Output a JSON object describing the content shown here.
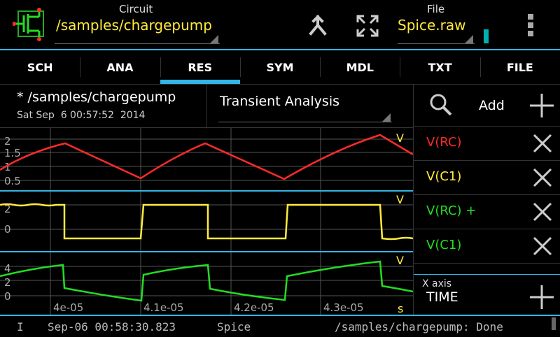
{
  "topbar": {
    "circuit_label": "Circuit",
    "circuit_value": "/samples/chargepump",
    "file_label": "File",
    "file_value": "Spice.raw",
    "logo_icon": "circuit-logo-icon",
    "merge_icon": "merge-icon",
    "fullscreen_icon": "fullscreen-icon",
    "menu_icon": "overflow-menu-icon"
  },
  "tabs": [
    {
      "label": "SCH",
      "active": false
    },
    {
      "label": "ANA",
      "active": false
    },
    {
      "label": "RES",
      "active": true
    },
    {
      "label": "SYM",
      "active": false
    },
    {
      "label": "MDL",
      "active": false
    },
    {
      "label": "TXT",
      "active": false
    },
    {
      "label": "FILE",
      "active": false
    }
  ],
  "info": {
    "title": "* /samples/chargepump",
    "date": "Sat Sep  6 00:57:52  2014",
    "analysis": "Transient Analysis"
  },
  "signals_panel": {
    "add_label": "Add",
    "signals": [
      {
        "label": "V(RC)",
        "color": "#ff2a2a"
      },
      {
        "label": "V(C1)",
        "color": "#ffeb3b"
      },
      {
        "label": "V(RC) +",
        "color": "#22dd22"
      },
      {
        "label": "V(C1)",
        "color": "#22dd22"
      }
    ],
    "xaxis_label": "X axis",
    "xaxis_value": "TIME"
  },
  "plots": {
    "x_ticks": [
      "4e-05",
      "4.1e-05",
      "4.2e-05",
      "4.3e-05"
    ],
    "x_unit": "s",
    "plot1": {
      "unit": "V",
      "ticks": [
        "2",
        "1.5",
        "1",
        "0.5"
      ]
    },
    "plot2": {
      "unit": "V",
      "ticks": [
        "2",
        "0"
      ]
    },
    "plot3": {
      "unit": "V",
      "ticks": [
        "4",
        "2",
        "0"
      ]
    }
  },
  "status": {
    "level": "I",
    "timestamp": "Sep-06 00:58:30.823",
    "source": "Spice",
    "message": "/samples/chargepump: Done"
  }
}
